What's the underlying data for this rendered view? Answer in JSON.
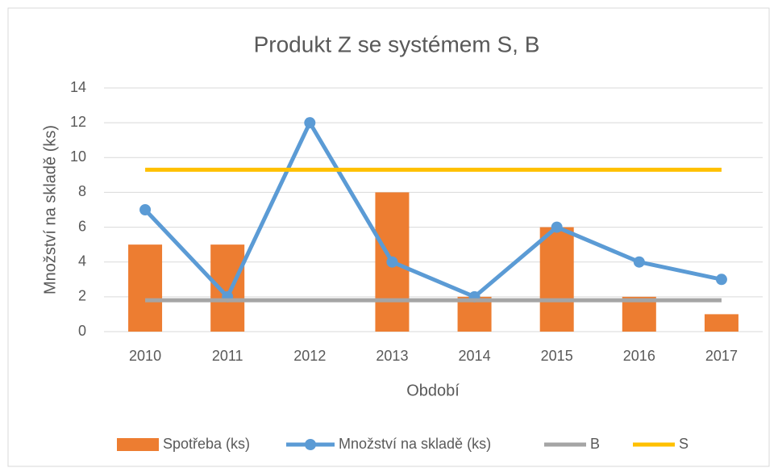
{
  "chart_data": {
    "type": "bar",
    "title": "Produkt Z se systémem S, B",
    "x_label": "Období",
    "y_label": "Množství na skladě (ks)",
    "categories": [
      "2010",
      "2011",
      "2012",
      "2013",
      "2014",
      "2015",
      "2016",
      "2017"
    ],
    "series": [
      {
        "name": "Spotřeba (ks)",
        "type": "bar",
        "color": "#ed7d31",
        "values": [
          5,
          5,
          0,
          8,
          2,
          6,
          2,
          1
        ]
      },
      {
        "name": "Množství na skladě (ks)",
        "type": "line",
        "marker": true,
        "color": "#5b9bd5",
        "values": [
          7,
          2,
          12,
          4,
          2,
          6,
          4,
          3
        ]
      },
      {
        "name": "B",
        "type": "line",
        "color": "#a5a5a5",
        "values": [
          1.8,
          1.8,
          1.8,
          1.8,
          1.8,
          1.8,
          1.8,
          1.8
        ]
      },
      {
        "name": "S",
        "type": "line",
        "color": "#ffc000",
        "values": [
          9.3,
          9.3,
          9.3,
          9.3,
          9.3,
          9.3,
          9.3,
          9.3
        ]
      }
    ],
    "ylim": [
      0,
      14
    ],
    "yticks": [
      0,
      2,
      4,
      6,
      8,
      10,
      12,
      14
    ],
    "grid": true,
    "legend": "bottom"
  }
}
